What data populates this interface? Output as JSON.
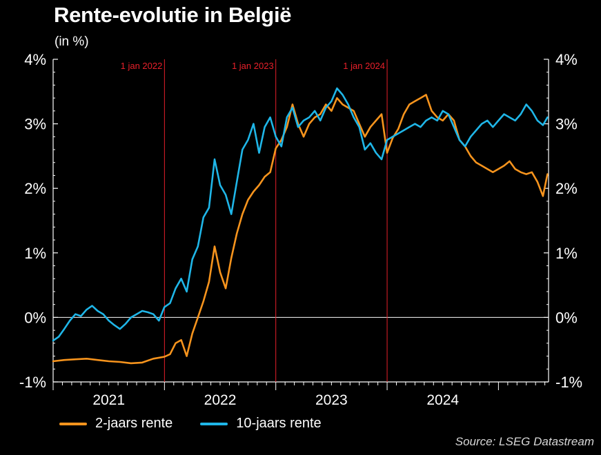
{
  "title": "Rente-evolutie in België",
  "subtitle": "(in %)",
  "source": "Source: LSEG Datastream",
  "colors": {
    "two_year": "#f7941d",
    "ten_year": "#1fb6e8",
    "marker": "#e8202a",
    "background": "#000000"
  },
  "chart_data": {
    "type": "line",
    "title": "Rente-evolutie in België",
    "ylabel": "(in %)",
    "ylim": [
      -1,
      4
    ],
    "xlim": [
      2021.0,
      2025.45
    ],
    "yticks": [
      -1,
      0,
      1,
      2,
      3,
      4
    ],
    "ytick_labels": [
      "-1%",
      "0%",
      "1%",
      "2%",
      "3%",
      "4%"
    ],
    "xticks": [
      2021,
      2022,
      2023,
      2024
    ],
    "xtick_labels": [
      "2021",
      "2022",
      "2023",
      "2024"
    ],
    "legend_position": "bottom",
    "grid": false,
    "annotations": [
      {
        "label": "1 jan 2022",
        "x": 2022.0
      },
      {
        "label": "1 jan 2023",
        "x": 2023.0
      },
      {
        "label": "1 jan 2024",
        "x": 2024.0
      }
    ],
    "series": [
      {
        "name": "2-jaars rente",
        "color": "#f7941d",
        "points": [
          [
            2021.0,
            -0.68
          ],
          [
            2021.1,
            -0.66
          ],
          [
            2021.2,
            -0.65
          ],
          [
            2021.3,
            -0.64
          ],
          [
            2021.4,
            -0.66
          ],
          [
            2021.5,
            -0.68
          ],
          [
            2021.6,
            -0.69
          ],
          [
            2021.7,
            -0.71
          ],
          [
            2021.8,
            -0.7
          ],
          [
            2021.9,
            -0.64
          ],
          [
            2022.0,
            -0.61
          ],
          [
            2022.05,
            -0.57
          ],
          [
            2022.1,
            -0.4
          ],
          [
            2022.15,
            -0.35
          ],
          [
            2022.2,
            -0.6
          ],
          [
            2022.25,
            -0.25
          ],
          [
            2022.3,
            0.0
          ],
          [
            2022.35,
            0.25
          ],
          [
            2022.4,
            0.55
          ],
          [
            2022.45,
            1.1
          ],
          [
            2022.5,
            0.7
          ],
          [
            2022.55,
            0.45
          ],
          [
            2022.6,
            0.92
          ],
          [
            2022.65,
            1.3
          ],
          [
            2022.7,
            1.6
          ],
          [
            2022.75,
            1.82
          ],
          [
            2022.8,
            1.95
          ],
          [
            2022.85,
            2.05
          ],
          [
            2022.9,
            2.18
          ],
          [
            2022.95,
            2.25
          ],
          [
            2023.0,
            2.62
          ],
          [
            2023.05,
            2.75
          ],
          [
            2023.1,
            2.95
          ],
          [
            2023.15,
            3.3
          ],
          [
            2023.2,
            3.0
          ],
          [
            2023.25,
            2.8
          ],
          [
            2023.3,
            3.0
          ],
          [
            2023.35,
            3.1
          ],
          [
            2023.4,
            3.15
          ],
          [
            2023.45,
            3.3
          ],
          [
            2023.5,
            3.2
          ],
          [
            2023.55,
            3.4
          ],
          [
            2023.6,
            3.3
          ],
          [
            2023.65,
            3.25
          ],
          [
            2023.7,
            3.2
          ],
          [
            2023.75,
            3.0
          ],
          [
            2023.8,
            2.8
          ],
          [
            2023.85,
            2.95
          ],
          [
            2023.9,
            3.05
          ],
          [
            2023.95,
            3.15
          ],
          [
            2024.0,
            2.55
          ],
          [
            2024.05,
            2.78
          ],
          [
            2024.1,
            2.92
          ],
          [
            2024.15,
            3.15
          ],
          [
            2024.2,
            3.3
          ],
          [
            2024.25,
            3.35
          ],
          [
            2024.3,
            3.4
          ],
          [
            2024.35,
            3.45
          ],
          [
            2024.4,
            3.2
          ],
          [
            2024.45,
            3.1
          ],
          [
            2024.5,
            3.05
          ],
          [
            2024.55,
            3.15
          ],
          [
            2024.6,
            3.05
          ],
          [
            2024.65,
            2.75
          ],
          [
            2024.7,
            2.65
          ],
          [
            2024.75,
            2.5
          ],
          [
            2024.8,
            2.4
          ],
          [
            2024.85,
            2.35
          ],
          [
            2024.9,
            2.3
          ],
          [
            2024.95,
            2.25
          ],
          [
            2025.0,
            2.3
          ],
          [
            2025.05,
            2.35
          ],
          [
            2025.1,
            2.42
          ],
          [
            2025.15,
            2.3
          ],
          [
            2025.2,
            2.25
          ],
          [
            2025.25,
            2.22
          ],
          [
            2025.3,
            2.25
          ],
          [
            2025.35,
            2.1
          ],
          [
            2025.4,
            1.88
          ],
          [
            2025.44,
            2.22
          ]
        ]
      },
      {
        "name": "10-jaars rente",
        "color": "#1fb6e8",
        "points": [
          [
            2021.0,
            -0.36
          ],
          [
            2021.05,
            -0.3
          ],
          [
            2021.1,
            -0.18
          ],
          [
            2021.15,
            -0.05
          ],
          [
            2021.2,
            0.05
          ],
          [
            2021.25,
            0.02
          ],
          [
            2021.3,
            0.12
          ],
          [
            2021.35,
            0.18
          ],
          [
            2021.4,
            0.1
          ],
          [
            2021.45,
            0.05
          ],
          [
            2021.5,
            -0.05
          ],
          [
            2021.55,
            -0.12
          ],
          [
            2021.6,
            -0.18
          ],
          [
            2021.65,
            -0.1
          ],
          [
            2021.7,
            0.0
          ],
          [
            2021.75,
            0.05
          ],
          [
            2021.8,
            0.1
          ],
          [
            2021.85,
            0.08
          ],
          [
            2021.9,
            0.05
          ],
          [
            2021.95,
            -0.05
          ],
          [
            2022.0,
            0.16
          ],
          [
            2022.05,
            0.22
          ],
          [
            2022.1,
            0.45
          ],
          [
            2022.15,
            0.6
          ],
          [
            2022.2,
            0.4
          ],
          [
            2022.25,
            0.9
          ],
          [
            2022.3,
            1.1
          ],
          [
            2022.35,
            1.55
          ],
          [
            2022.4,
            1.7
          ],
          [
            2022.45,
            2.45
          ],
          [
            2022.5,
            2.05
          ],
          [
            2022.55,
            1.9
          ],
          [
            2022.6,
            1.6
          ],
          [
            2022.65,
            2.1
          ],
          [
            2022.7,
            2.6
          ],
          [
            2022.75,
            2.75
          ],
          [
            2022.8,
            3.0
          ],
          [
            2022.85,
            2.55
          ],
          [
            2022.9,
            2.95
          ],
          [
            2022.95,
            3.1
          ],
          [
            2023.0,
            2.8
          ],
          [
            2023.05,
            2.65
          ],
          [
            2023.1,
            3.1
          ],
          [
            2023.15,
            3.25
          ],
          [
            2023.2,
            2.95
          ],
          [
            2023.25,
            3.05
          ],
          [
            2023.3,
            3.1
          ],
          [
            2023.35,
            3.2
          ],
          [
            2023.4,
            3.05
          ],
          [
            2023.45,
            3.25
          ],
          [
            2023.5,
            3.35
          ],
          [
            2023.55,
            3.55
          ],
          [
            2023.6,
            3.45
          ],
          [
            2023.65,
            3.3
          ],
          [
            2023.7,
            3.1
          ],
          [
            2023.75,
            2.95
          ],
          [
            2023.8,
            2.6
          ],
          [
            2023.85,
            2.7
          ],
          [
            2023.9,
            2.55
          ],
          [
            2023.95,
            2.45
          ],
          [
            2024.0,
            2.75
          ],
          [
            2024.05,
            2.8
          ],
          [
            2024.1,
            2.85
          ],
          [
            2024.15,
            2.9
          ],
          [
            2024.2,
            2.95
          ],
          [
            2024.25,
            3.0
          ],
          [
            2024.3,
            2.95
          ],
          [
            2024.35,
            3.05
          ],
          [
            2024.4,
            3.1
          ],
          [
            2024.45,
            3.05
          ],
          [
            2024.5,
            3.2
          ],
          [
            2024.55,
            3.15
          ],
          [
            2024.6,
            2.95
          ],
          [
            2024.65,
            2.75
          ],
          [
            2024.7,
            2.65
          ],
          [
            2024.75,
            2.8
          ],
          [
            2024.8,
            2.9
          ],
          [
            2024.85,
            3.0
          ],
          [
            2024.9,
            3.05
          ],
          [
            2024.95,
            2.95
          ],
          [
            2025.0,
            3.05
          ],
          [
            2025.05,
            3.15
          ],
          [
            2025.1,
            3.1
          ],
          [
            2025.15,
            3.05
          ],
          [
            2025.2,
            3.15
          ],
          [
            2025.25,
            3.3
          ],
          [
            2025.3,
            3.2
          ],
          [
            2025.35,
            3.05
          ],
          [
            2025.4,
            2.98
          ],
          [
            2025.44,
            3.1
          ]
        ]
      }
    ]
  }
}
